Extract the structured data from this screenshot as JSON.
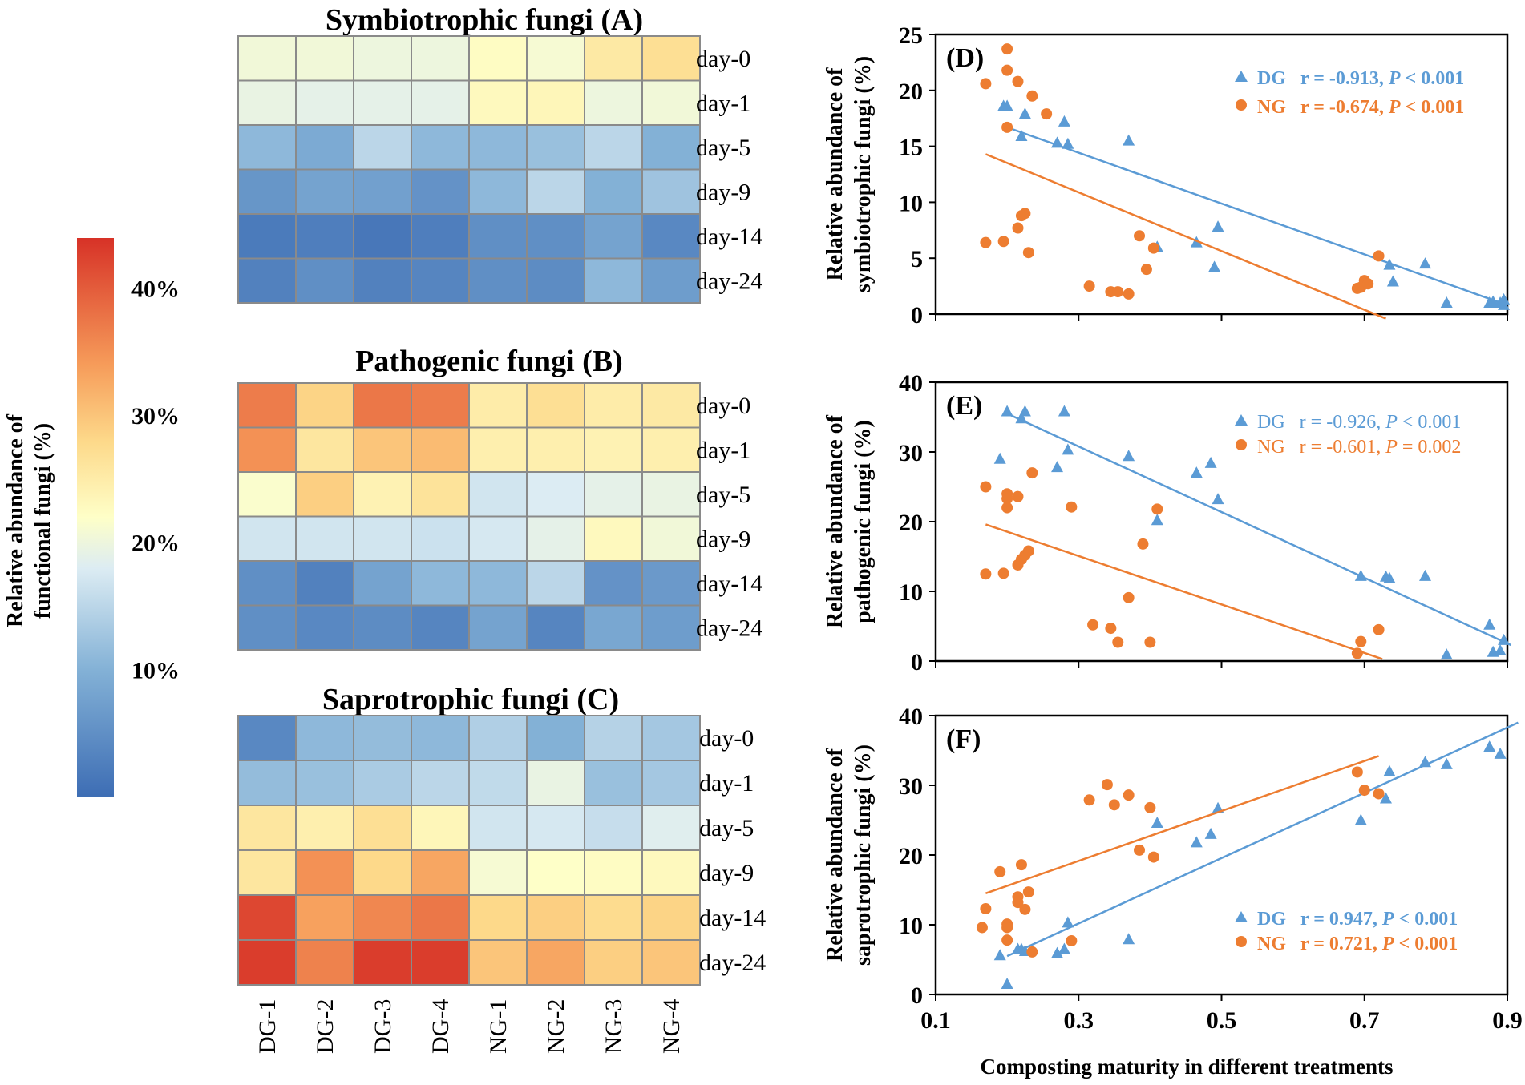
{
  "colorbar": {
    "label_line1": "Relative abundance of",
    "label_line2": "functional fungi (%)",
    "ticks": [
      {
        "value": 40,
        "label": "40%"
      },
      {
        "value": 30,
        "label": "30%"
      },
      {
        "value": 20,
        "label": "20%"
      },
      {
        "value": 10,
        "label": "10%"
      }
    ],
    "range": [
      0,
      44
    ],
    "stops": [
      {
        "value": 0,
        "color": "#3d6db4"
      },
      {
        "value": 10,
        "color": "#83b1d6"
      },
      {
        "value": 18,
        "color": "#dcecf3"
      },
      {
        "value": 22,
        "color": "#feffc8"
      },
      {
        "value": 28,
        "color": "#fdd98a"
      },
      {
        "value": 34,
        "color": "#f69c5a"
      },
      {
        "value": 44,
        "color": "#d73227"
      }
    ]
  },
  "chart_data": [
    {
      "type": "heatmap",
      "title": "Symbiotrophic fungi (A)",
      "columns": [
        "DG-1",
        "DG-2",
        "DG-3",
        "DG-4",
        "NG-1",
        "NG-2",
        "NG-3",
        "NG-4"
      ],
      "rows": [
        "day-0",
        "day-1",
        "day-5",
        "day-9",
        "day-14",
        "day-24"
      ],
      "values": [
        [
          20.5,
          20.5,
          20,
          20,
          22.5,
          21,
          25.5,
          27
        ],
        [
          19.5,
          19,
          19,
          19,
          23,
          23.5,
          20,
          20.5
        ],
        [
          11,
          9,
          15,
          11,
          11,
          12,
          15,
          10
        ],
        [
          6,
          8,
          7.5,
          5.5,
          11,
          15,
          10,
          12.5
        ],
        [
          2,
          2.5,
          1.5,
          2.5,
          5,
          5,
          8,
          4
        ],
        [
          3,
          5,
          3,
          3.5,
          5,
          4.5,
          11,
          7
        ]
      ]
    },
    {
      "type": "heatmap",
      "title": "Pathogenic fungi (B)",
      "columns": [
        "DG-1",
        "DG-2",
        "DG-3",
        "DG-4",
        "NG-1",
        "NG-2",
        "NG-3",
        "NG-4"
      ],
      "rows": [
        "day-0",
        "day-1",
        "day-5",
        "day-9",
        "day-14",
        "day-24"
      ],
      "values": [
        [
          37,
          28.5,
          37.5,
          37,
          25,
          27,
          25,
          25.5
        ],
        [
          35,
          26,
          30,
          31,
          24.5,
          24.5,
          24,
          24.5
        ],
        [
          21.5,
          29,
          24,
          26.5,
          17,
          18,
          19,
          19.5
        ],
        [
          17,
          17,
          17,
          16.5,
          17.5,
          19,
          23,
          20.5
        ],
        [
          5,
          3,
          8,
          11,
          11,
          15,
          5.5,
          6.5
        ],
        [
          5,
          4,
          4.5,
          3.5,
          8,
          3.5,
          8.5,
          7
        ]
      ]
    },
    {
      "type": "heatmap",
      "title": "Saprotrophic fungi (C)",
      "columns": [
        "DG-1",
        "DG-2",
        "DG-3",
        "DG-4",
        "NG-1",
        "NG-2",
        "NG-3",
        "NG-4"
      ],
      "rows": [
        "day-0",
        "day-1",
        "day-5",
        "day-9",
        "day-14",
        "day-24"
      ],
      "values": [
        [
          4,
          11,
          11.5,
          11,
          14,
          10,
          14.5,
          13
        ],
        [
          11.5,
          12,
          13.5,
          15,
          15.5,
          19.5,
          12,
          13
        ],
        [
          26,
          24.5,
          27,
          23.5,
          17,
          17.5,
          16,
          18.5
        ],
        [
          26,
          35,
          28,
          33,
          21,
          22,
          22.5,
          23
        ],
        [
          42,
          33.5,
          36,
          37.5,
          28,
          29,
          27.5,
          28.5
        ],
        [
          43,
          36.5,
          43,
          43,
          30,
          33,
          29,
          30
        ]
      ]
    },
    {
      "type": "scatter",
      "panel": "(D)",
      "ylabel_line1": "Relative abundance of",
      "ylabel_line2": "symbiotrophic fungi (%)",
      "xlim": [
        0.1,
        0.9
      ],
      "ylim": [
        0,
        25
      ],
      "xticks": [
        "0.1",
        "0.3",
        "0.5",
        "0.7",
        "0.9"
      ],
      "yticks": [
        "0",
        "5",
        "10",
        "15",
        "20",
        "25"
      ],
      "series": [
        {
          "name": "DG",
          "marker": "triangle",
          "color": "#5b9bd5",
          "label": "DG",
          "stats": "r = -0.913, ",
          "p_label": "P",
          "p_value": " < 0.001",
          "bold": true,
          "points": [
            [
              0.195,
              18.6
            ],
            [
              0.2,
              18.6
            ],
            [
              0.22,
              15.9
            ],
            [
              0.225,
              17.9
            ],
            [
              0.27,
              15.3
            ],
            [
              0.28,
              17.2
            ],
            [
              0.285,
              15.2
            ],
            [
              0.37,
              15.5
            ],
            [
              0.41,
              6
            ],
            [
              0.465,
              6.4
            ],
            [
              0.49,
              4.2
            ],
            [
              0.495,
              7.8
            ],
            [
              0.735,
              4.4
            ],
            [
              0.74,
              2.9
            ],
            [
              0.785,
              4.5
            ],
            [
              0.815,
              1
            ],
            [
              0.875,
              1
            ],
            [
              0.88,
              1.1
            ],
            [
              0.89,
              1
            ],
            [
              0.895,
              1.3
            ],
            [
              0.895,
              0.8
            ]
          ],
          "fit": [
            [
              0.2,
              16.7
            ],
            [
              0.9,
              0.8
            ]
          ]
        },
        {
          "name": "NG",
          "marker": "circle",
          "color": "#ed7d31",
          "label": "NG",
          "stats": "r = -0.674, ",
          "p_label": "P",
          "p_value": " < 0.001",
          "bold": true,
          "points": [
            [
              0.17,
              20.6
            ],
            [
              0.2,
              23.7
            ],
            [
              0.2,
              21.8
            ],
            [
              0.2,
              16.7
            ],
            [
              0.215,
              20.8
            ],
            [
              0.235,
              19.5
            ],
            [
              0.255,
              17.9
            ],
            [
              0.17,
              6.4
            ],
            [
              0.195,
              6.5
            ],
            [
              0.215,
              7.7
            ],
            [
              0.22,
              8.8
            ],
            [
              0.225,
              9
            ],
            [
              0.23,
              5.5
            ],
            [
              0.315,
              2.5
            ],
            [
              0.345,
              2
            ],
            [
              0.355,
              2
            ],
            [
              0.37,
              1.8
            ],
            [
              0.385,
              7
            ],
            [
              0.395,
              4
            ],
            [
              0.405,
              5.9
            ],
            [
              0.69,
              2.3
            ],
            [
              0.695,
              2.4
            ],
            [
              0.7,
              3
            ],
            [
              0.705,
              2.7
            ],
            [
              0.72,
              5.2
            ]
          ],
          "fit": [
            [
              0.17,
              14.3
            ],
            [
              0.73,
              -0.4
            ]
          ]
        }
      ]
    },
    {
      "type": "scatter",
      "panel": "(E)",
      "ylabel_line1": "Relative abundance of",
      "ylabel_line2": "pathogenic fungi (%)",
      "xlim": [
        0.1,
        0.9
      ],
      "ylim": [
        0,
        40
      ],
      "xticks": [
        "0.1",
        "0.3",
        "0.5",
        "0.7",
        "0.9"
      ],
      "yticks": [
        "0",
        "10",
        "20",
        "30",
        "40"
      ],
      "series": [
        {
          "name": "DG",
          "marker": "triangle",
          "color": "#5b9bd5",
          "label": "DG",
          "stats": "r = -0.926, ",
          "p_label": "P",
          "p_value": " < 0.001",
          "bold": false,
          "points": [
            [
              0.19,
              29
            ],
            [
              0.2,
              35.8
            ],
            [
              0.22,
              34.8
            ],
            [
              0.225,
              35.8
            ],
            [
              0.27,
              27.8
            ],
            [
              0.28,
              35.8
            ],
            [
              0.285,
              30.3
            ],
            [
              0.37,
              29.4
            ],
            [
              0.41,
              20.2
            ],
            [
              0.465,
              27
            ],
            [
              0.485,
              28.4
            ],
            [
              0.495,
              23.2
            ],
            [
              0.695,
              12.2
            ],
            [
              0.73,
              12.1
            ],
            [
              0.735,
              11.9
            ],
            [
              0.785,
              12.2
            ],
            [
              0.815,
              0.9
            ],
            [
              0.875,
              5.2
            ],
            [
              0.88,
              1.3
            ],
            [
              0.89,
              1.5
            ],
            [
              0.895,
              3
            ]
          ],
          "fit": [
            [
              0.2,
              35.5
            ],
            [
              0.905,
              2.3
            ]
          ]
        },
        {
          "name": "NG",
          "marker": "circle",
          "color": "#ed7d31",
          "label": "NG",
          "stats": "r = -0.601, ",
          "p_label": "P",
          "p_value": " = 0.002",
          "bold": false,
          "points": [
            [
              0.17,
              25
            ],
            [
              0.17,
              12.5
            ],
            [
              0.195,
              12.6
            ],
            [
              0.2,
              24
            ],
            [
              0.2,
              23.3
            ],
            [
              0.2,
              22
            ],
            [
              0.215,
              23.6
            ],
            [
              0.215,
              13.8
            ],
            [
              0.22,
              14.6
            ],
            [
              0.225,
              15.2
            ],
            [
              0.23,
              15.8
            ],
            [
              0.235,
              27
            ],
            [
              0.29,
              22.1
            ],
            [
              0.32,
              5.2
            ],
            [
              0.345,
              4.7
            ],
            [
              0.355,
              2.7
            ],
            [
              0.37,
              9.1
            ],
            [
              0.39,
              16.8
            ],
            [
              0.4,
              2.7
            ],
            [
              0.41,
              21.8
            ],
            [
              0.69,
              1.1
            ],
            [
              0.695,
              2.8
            ],
            [
              0.72,
              4.5
            ]
          ],
          "fit": [
            [
              0.17,
              19.6
            ],
            [
              0.725,
              0.3
            ]
          ]
        }
      ]
    },
    {
      "type": "scatter",
      "panel": "(F)",
      "ylabel_line1": "Relative abundance of",
      "ylabel_line2": "saprotrophic fungi (%)",
      "xlabel": "Composting maturity in different treatments",
      "xlim": [
        0.1,
        0.9
      ],
      "ylim": [
        0,
        40
      ],
      "xticks": [
        "0.1",
        "0.3",
        "0.5",
        "0.7",
        "0.9"
      ],
      "yticks": [
        "0",
        "10",
        "20",
        "30",
        "40"
      ],
      "series": [
        {
          "name": "DG",
          "marker": "triangle",
          "color": "#5b9bd5",
          "label": "DG",
          "stats": "r = 0.947, ",
          "p_label": "P",
          "p_value": " < 0.001",
          "bold": true,
          "points": [
            [
              0.19,
              5.6
            ],
            [
              0.2,
              1.5
            ],
            [
              0.215,
              6.5
            ],
            [
              0.22,
              6.5
            ],
            [
              0.225,
              6.2
            ],
            [
              0.27,
              5.9
            ],
            [
              0.28,
              6.5
            ],
            [
              0.285,
              10.3
            ],
            [
              0.37,
              7.9
            ],
            [
              0.41,
              24.6
            ],
            [
              0.465,
              21.8
            ],
            [
              0.485,
              23
            ],
            [
              0.495,
              26.7
            ],
            [
              0.695,
              25
            ],
            [
              0.73,
              28.1
            ],
            [
              0.735,
              32
            ],
            [
              0.785,
              33.3
            ],
            [
              0.815,
              33
            ],
            [
              0.875,
              35.5
            ],
            [
              0.89,
              34.5
            ]
          ],
          "fit": [
            [
              0.2,
              5.5
            ],
            [
              0.915,
              39
            ]
          ]
        },
        {
          "name": "NG",
          "marker": "circle",
          "color": "#ed7d31",
          "label": "NG",
          "stats": "r = 0.721, ",
          "p_label": "P",
          "p_value": " < 0.001",
          "bold": true,
          "points": [
            [
              0.165,
              9.6
            ],
            [
              0.17,
              12.3
            ],
            [
              0.19,
              17.6
            ],
            [
              0.2,
              10.1
            ],
            [
              0.2,
              9.6
            ],
            [
              0.2,
              7.8
            ],
            [
              0.215,
              14
            ],
            [
              0.215,
              13.2
            ],
            [
              0.22,
              18.6
            ],
            [
              0.225,
              12.2
            ],
            [
              0.23,
              14.7
            ],
            [
              0.235,
              6.1
            ],
            [
              0.29,
              7.7
            ],
            [
              0.315,
              27.9
            ],
            [
              0.34,
              30.1
            ],
            [
              0.35,
              27.2
            ],
            [
              0.37,
              28.6
            ],
            [
              0.385,
              20.7
            ],
            [
              0.4,
              26.8
            ],
            [
              0.405,
              19.7
            ],
            [
              0.69,
              31.9
            ],
            [
              0.7,
              29.3
            ],
            [
              0.72,
              28.8
            ]
          ],
          "fit": [
            [
              0.17,
              14.5
            ],
            [
              0.72,
              34.2
            ]
          ]
        }
      ]
    }
  ]
}
